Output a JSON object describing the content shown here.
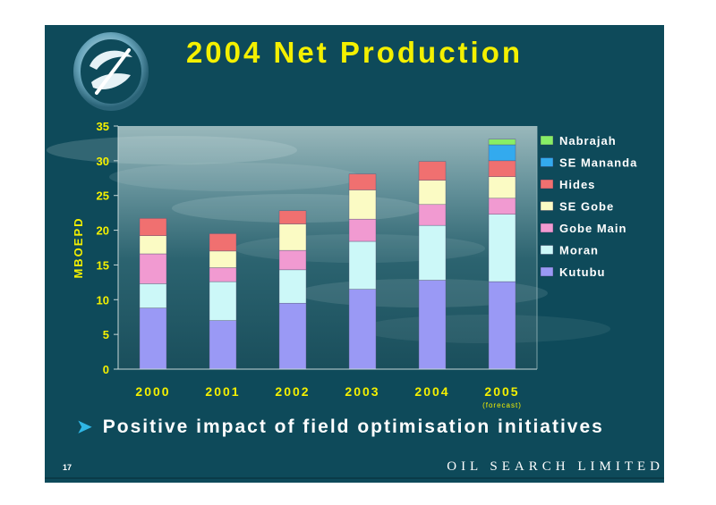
{
  "slide": {
    "title": "2004 Net Production",
    "bullet": "Positive impact of field optimisation initiatives",
    "page_number": "17",
    "company": "OIL SEARCH LIMITED"
  },
  "colors": {
    "background": "#0e4a5a",
    "title": "#f4f000",
    "axis_text": "#f4f000",
    "legend_text": "#ffffff",
    "bullet_arrow": "#2fb7e6"
  },
  "chart_data": {
    "type": "bar",
    "stacked": true,
    "title": "",
    "xlabel": "",
    "ylabel": "MBOEPD",
    "ylim": [
      0,
      35
    ],
    "yticks": [
      0,
      5,
      10,
      15,
      20,
      25,
      30,
      35
    ],
    "grid": false,
    "legend_position": "right",
    "categories": [
      "2000",
      "2001",
      "2002",
      "2003",
      "2004",
      "2005"
    ],
    "category_notes": [
      "",
      "",
      "",
      "",
      "",
      "(forecast)"
    ],
    "series": [
      {
        "name": "Kutubu",
        "color": "#9a99f5",
        "values": [
          8.8,
          7.0,
          9.5,
          11.5,
          12.8,
          12.6
        ]
      },
      {
        "name": "Moran",
        "color": "#ccf8f8",
        "values": [
          3.5,
          5.6,
          4.8,
          6.9,
          7.9,
          9.7
        ]
      },
      {
        "name": "Gobe Main",
        "color": "#f19ad1",
        "values": [
          4.3,
          2.0,
          2.8,
          3.2,
          3.0,
          2.3
        ]
      },
      {
        "name": "SE Gobe",
        "color": "#fbfbc4",
        "values": [
          2.6,
          2.4,
          3.8,
          4.2,
          3.5,
          3.1
        ]
      },
      {
        "name": "Hides",
        "color": "#f07070",
        "values": [
          2.5,
          2.5,
          1.9,
          2.3,
          2.7,
          2.3
        ]
      },
      {
        "name": "SE Mananda",
        "color": "#33aaee",
        "values": [
          0,
          0,
          0,
          0,
          0,
          2.3
        ]
      },
      {
        "name": "Nabrajah",
        "color": "#88ee66",
        "values": [
          0,
          0,
          0,
          0,
          0,
          0.8
        ]
      }
    ]
  }
}
